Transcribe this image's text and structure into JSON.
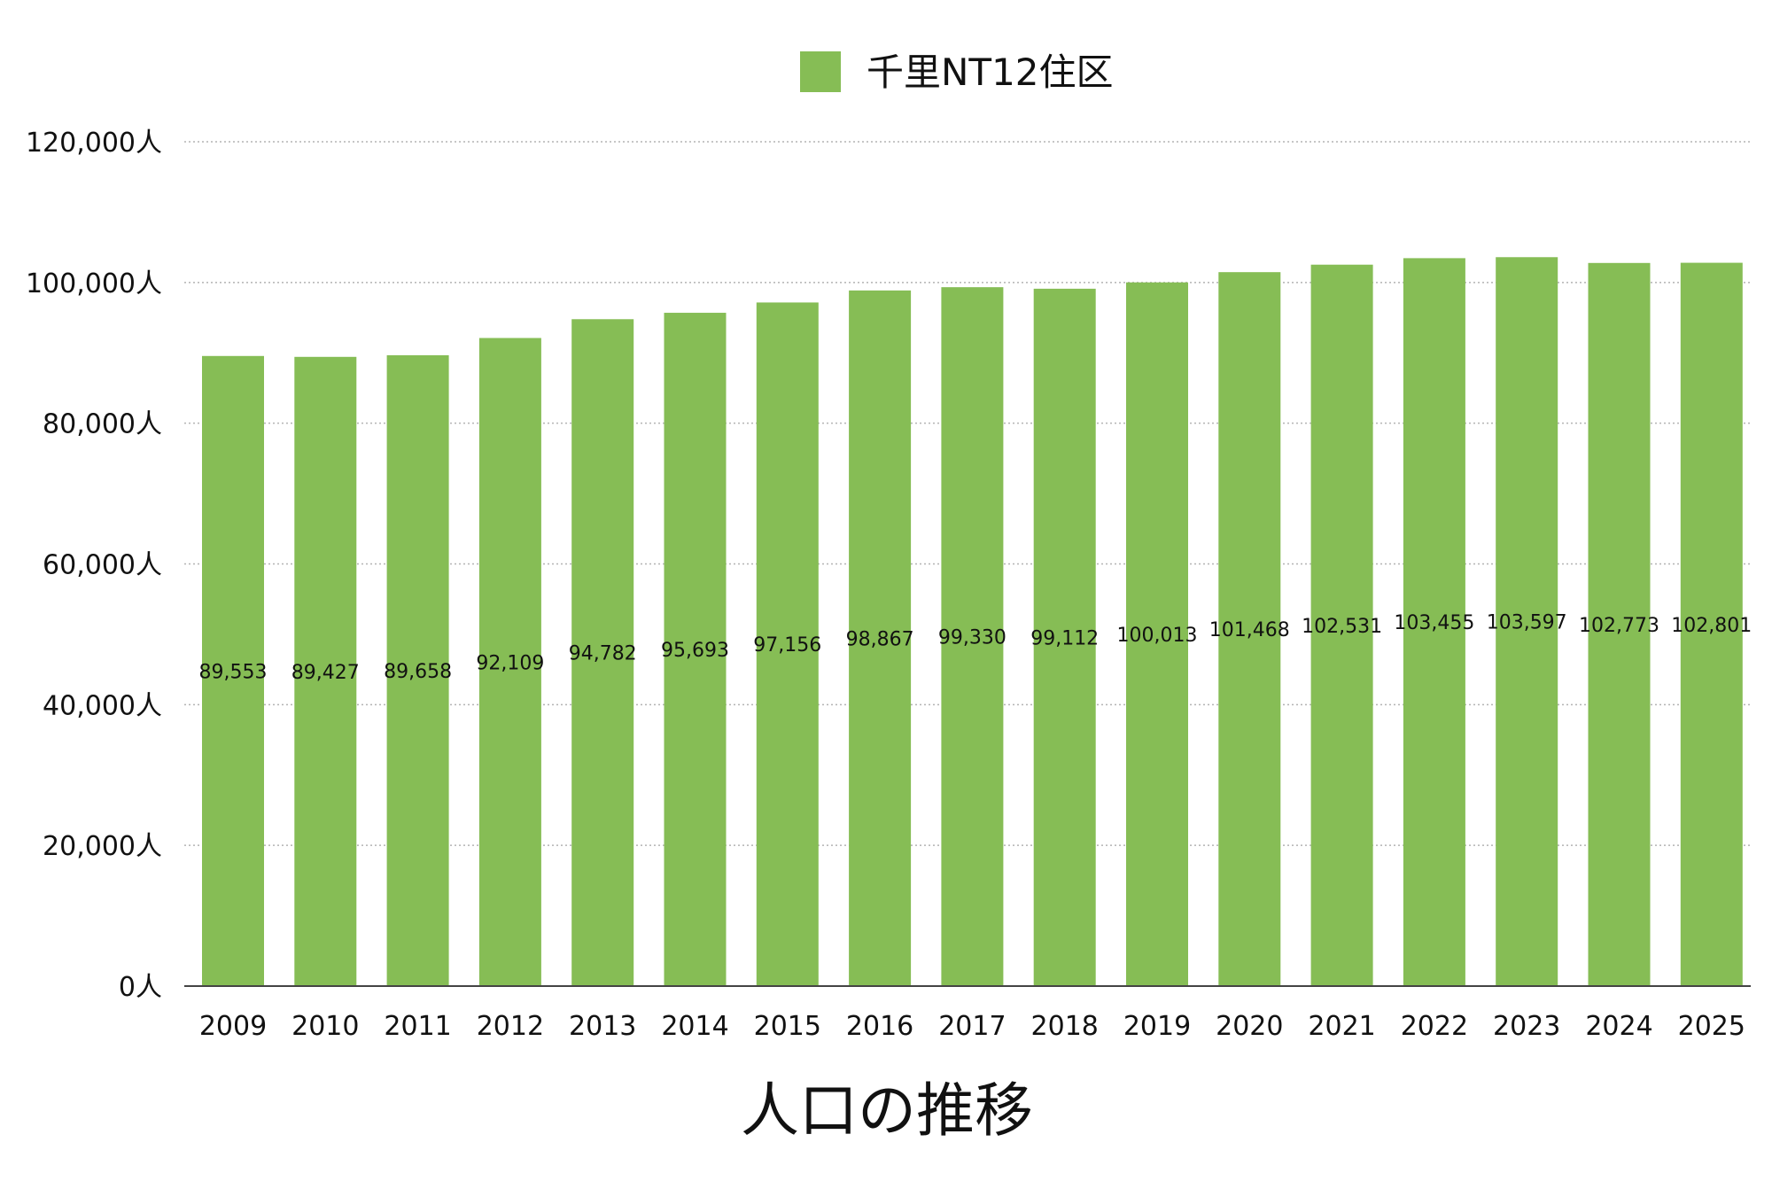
{
  "chart_data": {
    "type": "bar",
    "title": "人口の推移",
    "xlabel": "",
    "ylabel": "",
    "categories": [
      "2009",
      "2010",
      "2011",
      "2012",
      "2013",
      "2014",
      "2015",
      "2016",
      "2017",
      "2018",
      "2019",
      "2020",
      "2021",
      "2022",
      "2023",
      "2024",
      "2025"
    ],
    "series": [
      {
        "name": "千里NT12住区",
        "values": [
          89553,
          89427,
          89658,
          92109,
          94782,
          95693,
          97156,
          98867,
          99330,
          99112,
          100013,
          101468,
          102531,
          103455,
          103597,
          102773,
          102801
        ],
        "labels": [
          "89,553",
          "89,427",
          "89,658",
          "92,109",
          "94,782",
          "95,693",
          "97,156",
          "98,867",
          "99,330",
          "99,112",
          "100,013",
          "101,468",
          "102,531",
          "103,455",
          "103,597",
          "102,773",
          "102,801"
        ]
      }
    ],
    "ylim": [
      0,
      120000
    ],
    "yticks": [
      0,
      20000,
      40000,
      60000,
      80000,
      100000,
      120000
    ],
    "ytick_labels": [
      "0人",
      "20,000人",
      "40,000人",
      "60,000人",
      "80,000人",
      "100,000人",
      "120,000人"
    ],
    "grid": true,
    "legend": "top-center",
    "colors": {
      "bar": "#86BD55",
      "grid": "#b3b3b3",
      "axis": "#444444",
      "text": "#111111"
    }
  }
}
